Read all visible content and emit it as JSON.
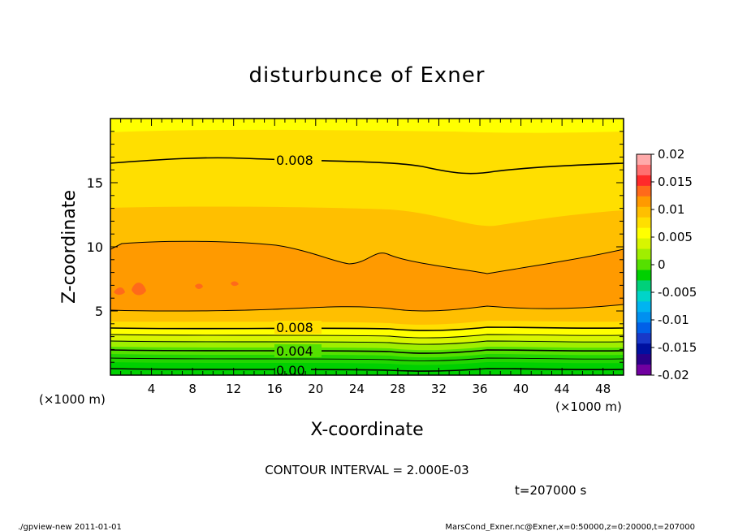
{
  "chart_data": {
    "type": "contour",
    "title": "disturbunce of Exner",
    "xlabel": "X-coordinate",
    "ylabel": "Z-coordinate",
    "x_unit": "(×1000 m)",
    "x_ticks": [
      4,
      8,
      12,
      16,
      20,
      24,
      28,
      32,
      36,
      40,
      44,
      48
    ],
    "y_ticks": [
      5,
      10,
      15
    ],
    "xlim": [
      0,
      50
    ],
    "ylim": [
      0,
      20
    ],
    "contour_interval_text": "CONTOUR INTERVAL = 2.000E-03",
    "contour_labels": [
      "0.008",
      "0.008",
      "0.004",
      "0.00"
    ],
    "time_text": "t=207000 s",
    "colorbar": {
      "ticks": [
        "0.02",
        "0.015",
        "0.01",
        "0.005",
        "0",
        "-0.005",
        "-0.01",
        "-0.015",
        "-0.02"
      ],
      "colors": [
        "#ffaaaa",
        "#ff7070",
        "#ff2a2a",
        "#ff6a1a",
        "#ff9a00",
        "#ffbf00",
        "#ffdf00",
        "#ffff00",
        "#d8f500",
        "#a0ee00",
        "#55e000",
        "#00d000",
        "#00d07a",
        "#00d4c8",
        "#00b4f0",
        "#0090f0",
        "#0060e8",
        "#1838c8",
        "#0010a0",
        "#2a008a",
        "#7000a0"
      ]
    }
  },
  "footer": {
    "left": "./gpview-new   2011-01-01",
    "right": "MarsCond_Exner.nc@Exner,x=0:50000,z=0:20000,t=207000"
  }
}
